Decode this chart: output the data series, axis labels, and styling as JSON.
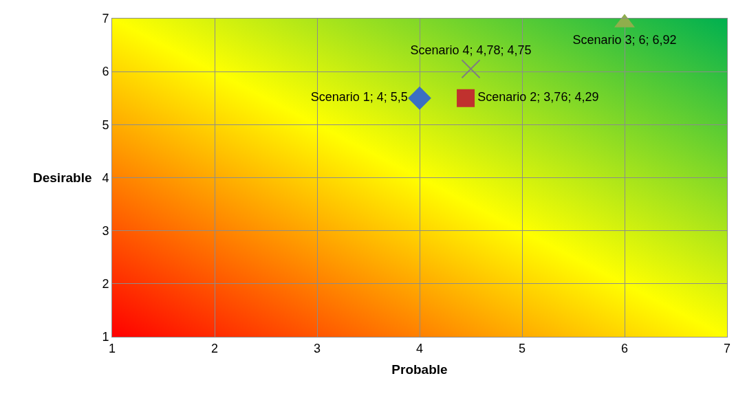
{
  "chart_data": {
    "type": "scatter",
    "xlabel": "Probable",
    "ylabel": "Desirable",
    "xlim": [
      1,
      7
    ],
    "ylim": [
      1,
      7
    ],
    "xticks": [
      1,
      2,
      3,
      4,
      5,
      6,
      7
    ],
    "yticks": [
      1,
      2,
      3,
      4,
      5,
      6,
      7
    ],
    "grid": true,
    "legend": false,
    "series": [
      {
        "color": "#3b6fc2",
        "marker": "diamond",
        "x": [
          4
        ],
        "values": [
          5.5
        ],
        "value_labels": [
          "Scenario 1; 4; 5,5"
        ]
      },
      {
        "color": "#c0312e",
        "marker": "square",
        "x": [
          4.45
        ],
        "values": [
          5.5
        ],
        "value_labels": [
          "Scenario 2; 3,76; 4,29"
        ]
      },
      {
        "color": "#8fae4c",
        "marker": "triangle",
        "x": [
          6
        ],
        "values": [
          6.92
        ],
        "value_labels": [
          "Scenario 3; 6; 6,92"
        ]
      },
      {
        "color": "#7f7f7f",
        "marker": "cross",
        "x": [
          4.5
        ],
        "values": [
          6.05
        ],
        "value_labels": [
          "Scenario 4; 4,78; 4,75"
        ]
      }
    ]
  }
}
